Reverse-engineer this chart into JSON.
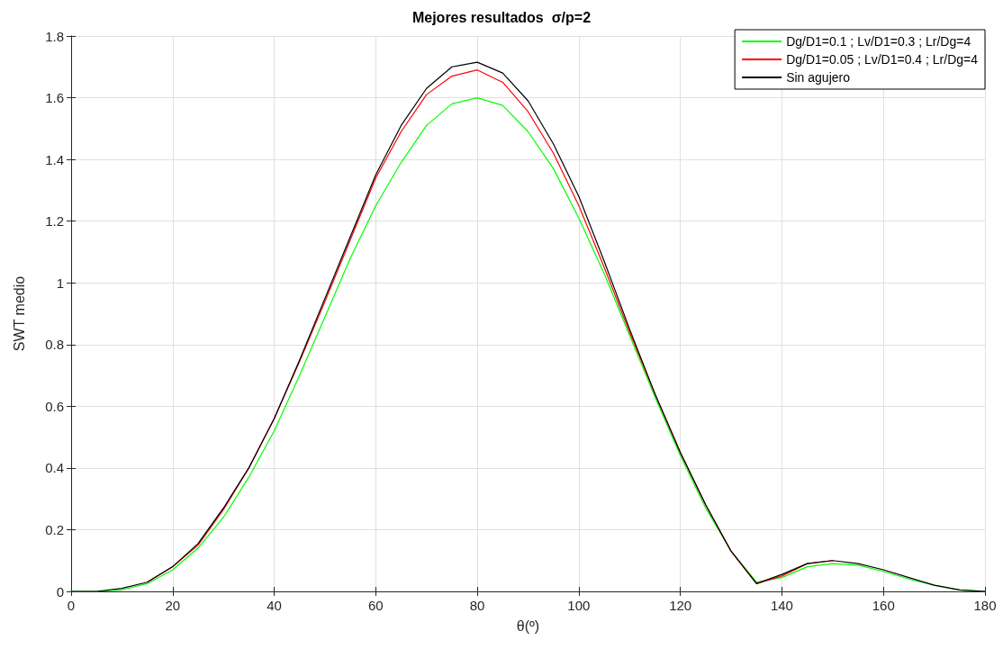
{
  "chart_data": {
    "type": "line",
    "title": "Mejores resultados  σ/p=2",
    "xlabel": "θ(º)",
    "ylabel": "SWT medio",
    "x": [
      0,
      5,
      10,
      15,
      20,
      25,
      30,
      35,
      40,
      45,
      50,
      55,
      60,
      65,
      70,
      75,
      80,
      85,
      90,
      95,
      100,
      105,
      110,
      115,
      120,
      125,
      130,
      135,
      140,
      145,
      150,
      155,
      160,
      165,
      170,
      175,
      180
    ],
    "series": [
      {
        "name": "Dg/D1=0.1 ; Lv/D1=0.3 ; Lr/Dg=4",
        "color": "#00ff00",
        "values": [
          0,
          0,
          0.005,
          0.025,
          0.07,
          0.14,
          0.24,
          0.37,
          0.52,
          0.7,
          0.89,
          1.08,
          1.25,
          1.39,
          1.51,
          1.58,
          1.6,
          1.575,
          1.49,
          1.37,
          1.21,
          1.03,
          0.83,
          0.63,
          0.44,
          0.27,
          0.13,
          0.03,
          0.045,
          0.08,
          0.09,
          0.085,
          0.065,
          0.04,
          0.02,
          0.005,
          0
        ]
      },
      {
        "name": "Dg/D1=0.05 ; Lv/D1=0.4 ; Lr/Dg=4",
        "color": "#ff0000",
        "values": [
          null,
          null,
          null,
          0.03,
          0.08,
          0.15,
          0.265,
          0.4,
          0.56,
          0.745,
          0.94,
          1.14,
          1.34,
          1.49,
          1.61,
          1.67,
          1.69,
          1.65,
          1.555,
          1.42,
          1.25,
          1.05,
          0.84,
          0.64,
          0.45,
          0.28,
          0.13,
          0.025,
          0.05,
          0.09,
          0.1,
          null,
          null,
          null,
          null,
          null,
          null
        ]
      },
      {
        "name": "Sin agujero",
        "color": "#000000",
        "values": [
          0,
          0,
          0.01,
          0.03,
          0.08,
          0.155,
          0.27,
          0.4,
          0.56,
          0.75,
          0.95,
          1.15,
          1.35,
          1.51,
          1.63,
          1.7,
          1.715,
          1.68,
          1.59,
          1.45,
          1.28,
          1.07,
          0.85,
          0.64,
          0.45,
          0.28,
          0.13,
          0.025,
          0.055,
          0.09,
          0.1,
          0.09,
          0.07,
          0.045,
          0.02,
          0.005,
          0
        ]
      }
    ],
    "xlim": [
      0,
      180
    ],
    "xticks": [
      0,
      20,
      40,
      60,
      80,
      100,
      120,
      140,
      160,
      180
    ],
    "ylim": [
      0,
      1.8
    ],
    "yticks": [
      0,
      0.2,
      0.4,
      0.6,
      0.8,
      1,
      1.2,
      1.4,
      1.6,
      1.8
    ],
    "grid": true,
    "legend": "top right",
    "marker": "none",
    "line_style": "solid"
  }
}
